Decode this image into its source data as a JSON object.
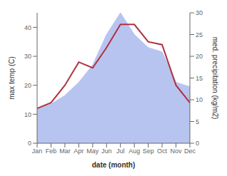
{
  "chart_data": {
    "type": "line",
    "xlabel": "date (month)",
    "ylabel": "max temp (C)",
    "y2label": "med. precipitation (kg/m2)",
    "categories": [
      "Jan",
      "Feb",
      "Mar",
      "Apr",
      "May",
      "Jun",
      "Jul",
      "Aug",
      "Sep",
      "Oct",
      "Nov",
      "Dec"
    ],
    "series": [
      {
        "type": "area",
        "axis": "y2",
        "color": "#b8c4f0",
        "values": [
          8,
          9,
          11,
          14,
          18,
          25,
          30,
          25,
          22,
          21,
          14,
          13
        ]
      },
      {
        "type": "line",
        "color": "#b03040",
        "values": [
          12,
          14,
          20,
          28,
          26,
          33,
          41,
          41,
          35,
          34,
          20,
          14
        ]
      }
    ],
    "ylim": [
      0,
      45
    ],
    "yticks": [
      0,
      10,
      20,
      30,
      40
    ],
    "y2lim": [
      0,
      30
    ],
    "y2ticks": [
      0,
      5,
      10,
      15,
      20,
      25,
      30
    ],
    "grid": false
  }
}
